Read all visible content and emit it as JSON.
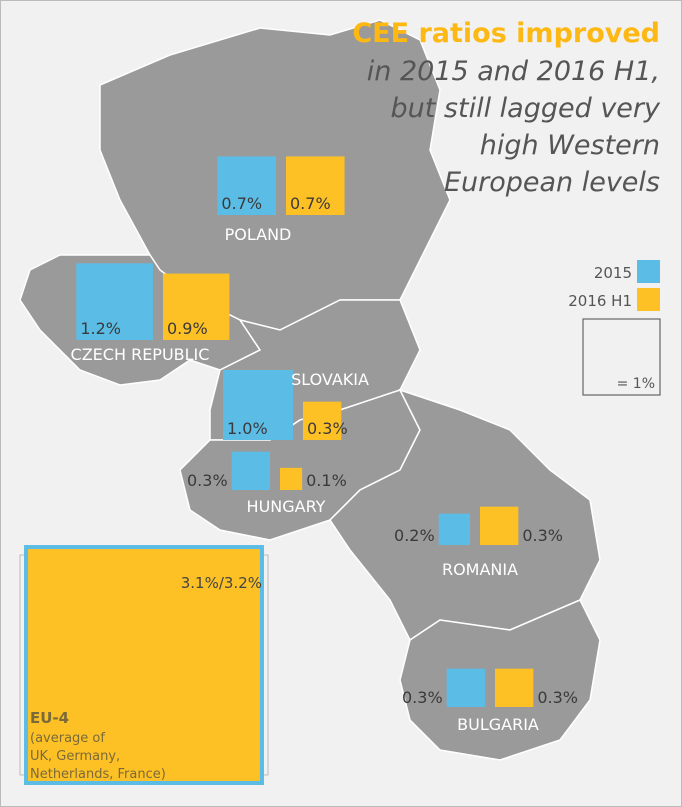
{
  "title": "CEE ratios improved",
  "subtitle_lines": [
    "in 2015 and 2016 H1,",
    "but still lagged very",
    "high Western",
    "European levels"
  ],
  "legend": {
    "series": [
      {
        "name": "2015",
        "color": "#5bbde6"
      },
      {
        "name": "2016 H1",
        "color": "#fdc125"
      }
    ],
    "scale_label": "= 1%",
    "scale_value": 1
  },
  "countries": [
    {
      "name": "POLAND",
      "values": [
        0.7,
        0.7
      ],
      "value_labels": [
        "0.7%",
        "0.7%"
      ]
    },
    {
      "name": "CZECH REPUBLIC",
      "values": [
        1.2,
        0.9
      ],
      "value_labels": [
        "1.2%",
        "0.9%"
      ]
    },
    {
      "name": "SLOVAKIA",
      "values": [
        1.0,
        0.3
      ],
      "value_labels": [
        "1.0%",
        "0.3%"
      ]
    },
    {
      "name": "HUNGARY",
      "values": [
        0.3,
        0.1
      ],
      "value_labels": [
        "0.3%",
        "0.1%"
      ]
    },
    {
      "name": "ROMANIA",
      "values": [
        0.2,
        0.3
      ],
      "value_labels": [
        "0.2%",
        "0.3%"
      ]
    },
    {
      "name": "BULGARIA",
      "values": [
        0.3,
        0.3
      ],
      "value_labels": [
        "0.3%",
        "0.3%"
      ]
    }
  ],
  "eu4": {
    "name": "EU-4",
    "values": [
      3.1,
      3.2
    ],
    "value_label": "3.1%/3.2%",
    "description_lines": [
      "(average of",
      "UK, Germany,",
      "Netherlands, France)"
    ]
  }
}
